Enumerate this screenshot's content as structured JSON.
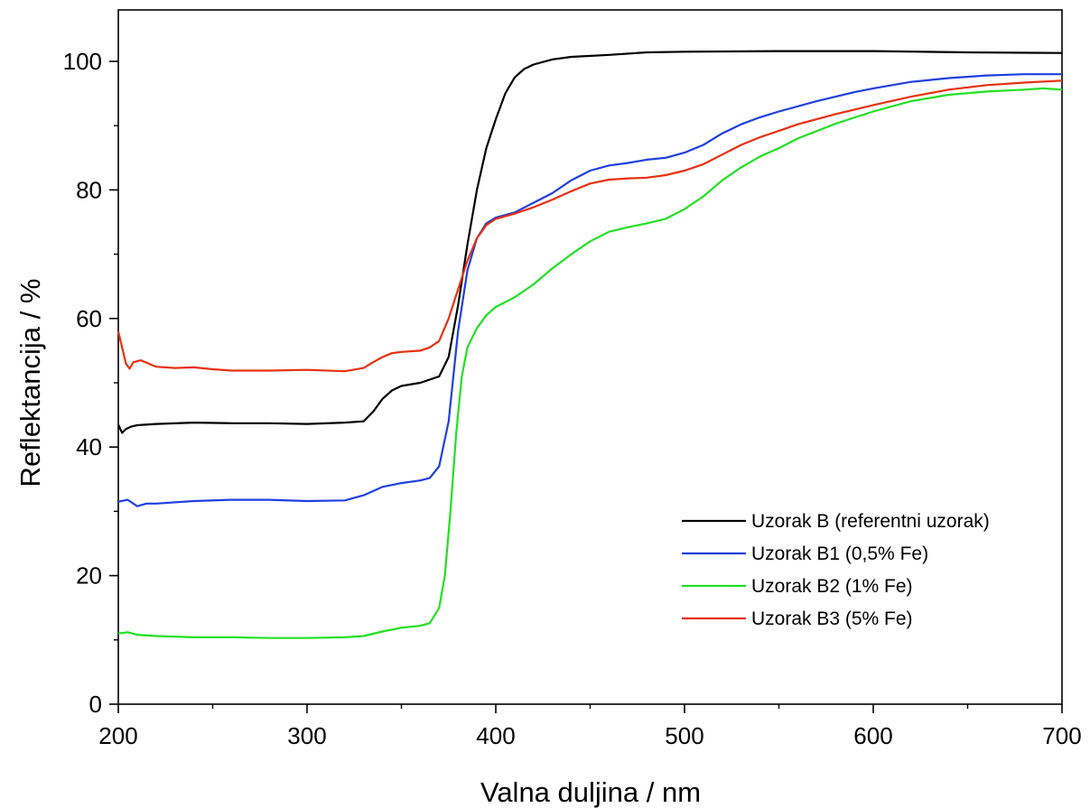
{
  "chart_data": {
    "type": "line",
    "title": "",
    "xlabel": "Valna duljina / nm",
    "ylabel": "Reflektancija / %",
    "xlim": [
      200,
      700
    ],
    "ylim": [
      0,
      108
    ],
    "x_ticks": [
      200,
      300,
      400,
      500,
      600,
      700
    ],
    "y_ticks": [
      0,
      20,
      40,
      60,
      80,
      100
    ],
    "x_minor_step": 50,
    "y_minor_step": 10,
    "grid": false,
    "legend_position": "bottom-right",
    "series": [
      {
        "name": "Uzorak B (referentni uzorak)",
        "color": "#000000",
        "points": [
          [
            200,
            43.5
          ],
          [
            202,
            42.2
          ],
          [
            204,
            42.8
          ],
          [
            207,
            43.2
          ],
          [
            210,
            43.4
          ],
          [
            220,
            43.6
          ],
          [
            240,
            43.8
          ],
          [
            260,
            43.7
          ],
          [
            280,
            43.7
          ],
          [
            300,
            43.6
          ],
          [
            320,
            43.8
          ],
          [
            330,
            44.0
          ],
          [
            335,
            45.5
          ],
          [
            340,
            47.5
          ],
          [
            345,
            48.8
          ],
          [
            350,
            49.5
          ],
          [
            360,
            50.0
          ],
          [
            370,
            51.0
          ],
          [
            375,
            54.0
          ],
          [
            380,
            62.0
          ],
          [
            385,
            71.5
          ],
          [
            390,
            80.0
          ],
          [
            395,
            86.5
          ],
          [
            400,
            91.0
          ],
          [
            405,
            95.0
          ],
          [
            410,
            97.5
          ],
          [
            415,
            98.8
          ],
          [
            420,
            99.5
          ],
          [
            430,
            100.3
          ],
          [
            440,
            100.7
          ],
          [
            460,
            101.0
          ],
          [
            480,
            101.4
          ],
          [
            500,
            101.5
          ],
          [
            550,
            101.6
          ],
          [
            600,
            101.6
          ],
          [
            650,
            101.4
          ],
          [
            700,
            101.3
          ]
        ]
      },
      {
        "name": "Uzorak B1 (0,5% Fe)",
        "color": "#1f3fe0",
        "points": [
          [
            200,
            31.5
          ],
          [
            205,
            31.8
          ],
          [
            210,
            30.8
          ],
          [
            215,
            31.2
          ],
          [
            220,
            31.2
          ],
          [
            240,
            31.6
          ],
          [
            260,
            31.8
          ],
          [
            280,
            31.8
          ],
          [
            300,
            31.6
          ],
          [
            320,
            31.7
          ],
          [
            330,
            32.5
          ],
          [
            340,
            33.8
          ],
          [
            350,
            34.4
          ],
          [
            360,
            34.8
          ],
          [
            365,
            35.2
          ],
          [
            370,
            37.0
          ],
          [
            375,
            44.0
          ],
          [
            380,
            58.0
          ],
          [
            385,
            67.5
          ],
          [
            390,
            72.5
          ],
          [
            395,
            74.8
          ],
          [
            400,
            75.7
          ],
          [
            410,
            76.5
          ],
          [
            420,
            78.0
          ],
          [
            430,
            79.5
          ],
          [
            440,
            81.5
          ],
          [
            450,
            83.0
          ],
          [
            460,
            83.8
          ],
          [
            470,
            84.2
          ],
          [
            480,
            84.7
          ],
          [
            490,
            85.0
          ],
          [
            500,
            85.8
          ],
          [
            510,
            87.0
          ],
          [
            520,
            88.8
          ],
          [
            530,
            90.2
          ],
          [
            540,
            91.3
          ],
          [
            550,
            92.2
          ],
          [
            560,
            93.0
          ],
          [
            570,
            93.8
          ],
          [
            580,
            94.5
          ],
          [
            590,
            95.2
          ],
          [
            600,
            95.8
          ],
          [
            620,
            96.8
          ],
          [
            640,
            97.4
          ],
          [
            660,
            97.8
          ],
          [
            680,
            98.0
          ],
          [
            700,
            98.0
          ]
        ]
      },
      {
        "name": "Uzorak B2 (1% Fe)",
        "color": "#22e022",
        "points": [
          [
            200,
            11.0
          ],
          [
            205,
            11.2
          ],
          [
            210,
            10.8
          ],
          [
            220,
            10.6
          ],
          [
            240,
            10.4
          ],
          [
            260,
            10.4
          ],
          [
            280,
            10.3
          ],
          [
            300,
            10.3
          ],
          [
            320,
            10.4
          ],
          [
            330,
            10.6
          ],
          [
            340,
            11.3
          ],
          [
            350,
            11.9
          ],
          [
            360,
            12.2
          ],
          [
            365,
            12.6
          ],
          [
            370,
            15.0
          ],
          [
            373,
            20.0
          ],
          [
            376,
            30.0
          ],
          [
            379,
            42.0
          ],
          [
            382,
            51.0
          ],
          [
            385,
            55.5
          ],
          [
            390,
            58.5
          ],
          [
            395,
            60.5
          ],
          [
            400,
            61.8
          ],
          [
            410,
            63.3
          ],
          [
            420,
            65.3
          ],
          [
            430,
            67.8
          ],
          [
            440,
            70.0
          ],
          [
            450,
            72.0
          ],
          [
            460,
            73.5
          ],
          [
            470,
            74.2
          ],
          [
            480,
            74.8
          ],
          [
            490,
            75.5
          ],
          [
            500,
            77.0
          ],
          [
            510,
            79.0
          ],
          [
            520,
            81.5
          ],
          [
            530,
            83.5
          ],
          [
            540,
            85.2
          ],
          [
            550,
            86.5
          ],
          [
            560,
            88.0
          ],
          [
            580,
            90.3
          ],
          [
            600,
            92.2
          ],
          [
            620,
            93.8
          ],
          [
            640,
            94.8
          ],
          [
            660,
            95.3
          ],
          [
            680,
            95.6
          ],
          [
            690,
            95.8
          ],
          [
            700,
            95.6
          ]
        ]
      },
      {
        "name": "Uzorak B3 (5% Fe)",
        "color": "#e83010",
        "points": [
          [
            200,
            58.0
          ],
          [
            202,
            55.5
          ],
          [
            204,
            53.0
          ],
          [
            206,
            52.2
          ],
          [
            208,
            53.2
          ],
          [
            212,
            53.5
          ],
          [
            216,
            53.0
          ],
          [
            220,
            52.5
          ],
          [
            230,
            52.3
          ],
          [
            240,
            52.4
          ],
          [
            250,
            52.1
          ],
          [
            260,
            51.9
          ],
          [
            280,
            51.9
          ],
          [
            300,
            52.0
          ],
          [
            320,
            51.8
          ],
          [
            330,
            52.3
          ],
          [
            335,
            53.2
          ],
          [
            340,
            54.0
          ],
          [
            345,
            54.6
          ],
          [
            350,
            54.8
          ],
          [
            360,
            55.0
          ],
          [
            365,
            55.5
          ],
          [
            370,
            56.5
          ],
          [
            375,
            60.0
          ],
          [
            380,
            64.5
          ],
          [
            385,
            69.0
          ],
          [
            390,
            72.5
          ],
          [
            395,
            74.5
          ],
          [
            400,
            75.5
          ],
          [
            410,
            76.3
          ],
          [
            420,
            77.3
          ],
          [
            430,
            78.5
          ],
          [
            440,
            79.8
          ],
          [
            450,
            81.0
          ],
          [
            460,
            81.6
          ],
          [
            470,
            81.8
          ],
          [
            480,
            81.9
          ],
          [
            490,
            82.3
          ],
          [
            500,
            83.0
          ],
          [
            510,
            84.0
          ],
          [
            520,
            85.5
          ],
          [
            530,
            87.0
          ],
          [
            540,
            88.2
          ],
          [
            550,
            89.2
          ],
          [
            560,
            90.2
          ],
          [
            580,
            91.8
          ],
          [
            600,
            93.2
          ],
          [
            620,
            94.5
          ],
          [
            640,
            95.6
          ],
          [
            660,
            96.3
          ],
          [
            680,
            96.7
          ],
          [
            700,
            97.0
          ]
        ]
      }
    ]
  }
}
